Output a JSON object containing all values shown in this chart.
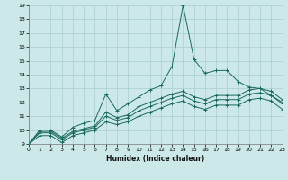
{
  "xlabel": "Humidex (Indice chaleur)",
  "bg_color": "#cce8e8",
  "grid_color": "#aacece",
  "line_color": "#1a6a5a",
  "x_values": [
    0,
    1,
    2,
    3,
    4,
    5,
    6,
    7,
    8,
    9,
    10,
    11,
    12,
    13,
    14,
    15,
    16,
    17,
    18,
    19,
    20,
    21,
    22,
    23
  ],
  "line1_y": [
    9.0,
    10.0,
    10.0,
    9.5,
    10.2,
    10.5,
    10.7,
    12.6,
    11.4,
    11.9,
    12.4,
    12.9,
    13.2,
    14.6,
    19.0,
    15.1,
    14.1,
    14.3,
    14.3,
    13.5,
    13.1,
    13.0,
    12.5,
    12.0
  ],
  "line2_y": [
    9.0,
    9.9,
    9.9,
    9.4,
    9.9,
    10.1,
    10.3,
    11.3,
    10.9,
    11.1,
    11.7,
    12.0,
    12.3,
    12.6,
    12.8,
    12.4,
    12.2,
    12.5,
    12.5,
    12.5,
    12.9,
    13.0,
    12.8,
    12.2
  ],
  "line3_y": [
    9.0,
    9.8,
    9.8,
    9.3,
    9.8,
    10.0,
    10.2,
    11.0,
    10.7,
    10.9,
    11.4,
    11.7,
    12.0,
    12.3,
    12.5,
    12.1,
    11.9,
    12.2,
    12.2,
    12.2,
    12.6,
    12.7,
    12.5,
    11.9
  ],
  "line4_y": [
    9.0,
    9.6,
    9.6,
    9.1,
    9.6,
    9.8,
    10.0,
    10.6,
    10.4,
    10.6,
    11.0,
    11.3,
    11.6,
    11.9,
    12.1,
    11.7,
    11.5,
    11.8,
    11.8,
    11.8,
    12.2,
    12.3,
    12.1,
    11.5
  ],
  "xlim": [
    0,
    23
  ],
  "ylim": [
    9,
    19
  ],
  "yticks": [
    9,
    10,
    11,
    12,
    13,
    14,
    15,
    16,
    17,
    18,
    19
  ],
  "xticks": [
    0,
    1,
    2,
    3,
    4,
    5,
    6,
    7,
    8,
    9,
    10,
    11,
    12,
    13,
    14,
    15,
    16,
    17,
    18,
    19,
    20,
    21,
    22,
    23
  ]
}
